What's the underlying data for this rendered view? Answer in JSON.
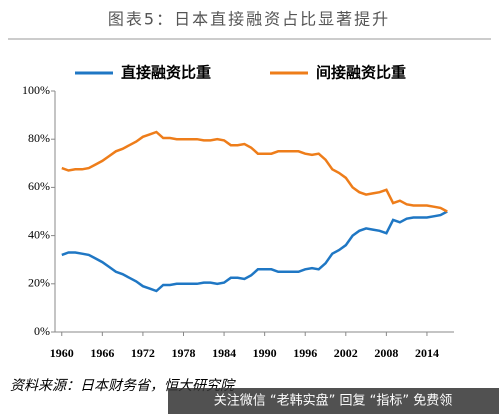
{
  "chart_data": {
    "type": "line",
    "title": "图表5：日本直接融资占比显著提升",
    "source": "资料来源：日本财务省，恒大研究院",
    "watermark": "关注微信 “老韩实盘” 回复 “指标” 免费领",
    "x": [
      1960,
      1961,
      1962,
      1963,
      1964,
      1965,
      1966,
      1967,
      1968,
      1969,
      1970,
      1971,
      1972,
      1973,
      1974,
      1975,
      1976,
      1977,
      1978,
      1979,
      1980,
      1981,
      1982,
      1983,
      1984,
      1985,
      1986,
      1987,
      1988,
      1989,
      1990,
      1991,
      1992,
      1993,
      1994,
      1995,
      1996,
      1997,
      1998,
      1999,
      2000,
      2001,
      2002,
      2003,
      2004,
      2005,
      2006,
      2007,
      2008,
      2009,
      2010,
      2011,
      2012,
      2013,
      2014,
      2015,
      2016,
      2017
    ],
    "series": [
      {
        "name": "直接融资比重",
        "color": "#1f77c4",
        "values": [
          32,
          33,
          33,
          32.5,
          32,
          30.5,
          29,
          27,
          25,
          24,
          22.5,
          21,
          19,
          18,
          17,
          19.5,
          19.5,
          20,
          20,
          20,
          20,
          20.5,
          20.5,
          20,
          20.5,
          22.5,
          22.5,
          22,
          23.5,
          26,
          26,
          26,
          25,
          25,
          25,
          25,
          26,
          26.5,
          26,
          28.5,
          32.5,
          34,
          36,
          40,
          42,
          43,
          42.5,
          42,
          41,
          46.5,
          45.5,
          47,
          47.5,
          47.5,
          47.5,
          48,
          48.5,
          50
        ]
      },
      {
        "name": "间接融资比重",
        "color": "#ee7d1a",
        "values": [
          68,
          67,
          67.5,
          67.5,
          68,
          69.5,
          71,
          73,
          75,
          76,
          77.5,
          79,
          81,
          82,
          83,
          80.5,
          80.5,
          80,
          80,
          80,
          80,
          79.5,
          79.5,
          80,
          79.5,
          77.5,
          77.5,
          78,
          76.5,
          74,
          74,
          74,
          75,
          75,
          75,
          75,
          74,
          73.5,
          74,
          71.5,
          67.5,
          66,
          64,
          60,
          58,
          57,
          57.5,
          58,
          59,
          53.5,
          54.5,
          53,
          52.5,
          52.5,
          52.5,
          52,
          51.5,
          50
        ]
      }
    ],
    "xlim": [
      1959,
      2018
    ],
    "xticks": [
      1960,
      1966,
      1972,
      1978,
      1984,
      1990,
      1996,
      2002,
      2008,
      2014
    ],
    "ylim": [
      0,
      100
    ],
    "yticks": [
      {
        "value": 0,
        "label": "0%"
      },
      {
        "value": 20,
        "label": "20%"
      },
      {
        "value": 40,
        "label": "40%"
      },
      {
        "value": 60,
        "label": "60%"
      },
      {
        "value": 80,
        "label": "80%"
      },
      {
        "value": 100,
        "label": "100%"
      }
    ],
    "grid": false,
    "legend": "top"
  }
}
